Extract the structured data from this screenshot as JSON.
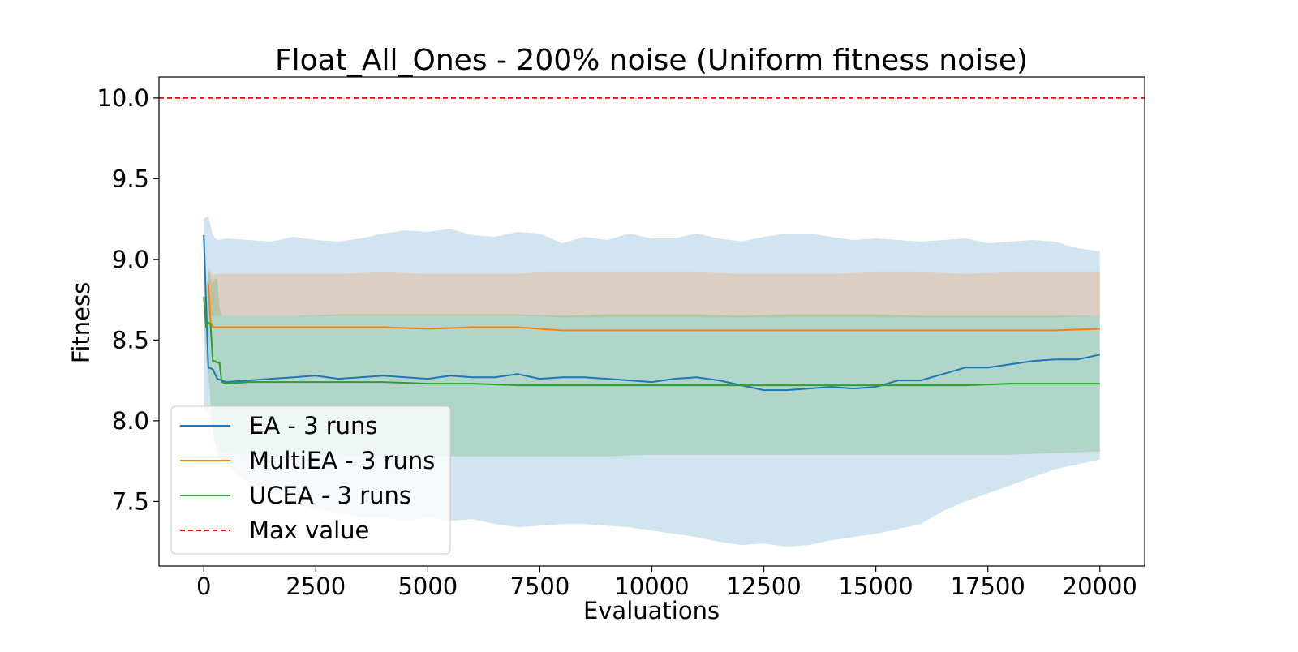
{
  "chart_data": {
    "type": "line",
    "title": "Float_All_Ones - 200% noise (Uniform fitness noise)",
    "xlabel": "Evaluations",
    "ylabel": "Fitness",
    "xlim": [
      -1000,
      21000
    ],
    "ylim": [
      7.1,
      10.13
    ],
    "xticks": [
      0,
      2500,
      5000,
      7500,
      10000,
      12500,
      15000,
      17500,
      20000
    ],
    "xtick_labels": [
      "0",
      "2500",
      "5000",
      "7500",
      "10000",
      "12500",
      "15000",
      "17500",
      "20000"
    ],
    "yticks": [
      7.5,
      8.0,
      8.5,
      9.0,
      9.5,
      10.0
    ],
    "ytick_labels": [
      "7.5",
      "8.0",
      "8.5",
      "9.0",
      "9.5",
      "10.0"
    ],
    "grid": false,
    "legend_position": "bottom-left",
    "series": [
      {
        "name": "EA - 3 runs",
        "color": "#1f77b4",
        "x": [
          0,
          100,
          200,
          300,
          500,
          1000,
          1500,
          2000,
          2500,
          3000,
          3500,
          4000,
          4500,
          5000,
          5500,
          6000,
          6500,
          7000,
          7500,
          8000,
          8500,
          9000,
          9500,
          10000,
          10500,
          11000,
          11500,
          12000,
          12500,
          13000,
          13500,
          14000,
          14500,
          15000,
          15500,
          16000,
          16500,
          17000,
          17500,
          18000,
          18500,
          19000,
          19500,
          20000
        ],
        "y": [
          9.15,
          8.33,
          8.32,
          8.26,
          8.24,
          8.25,
          8.26,
          8.27,
          8.28,
          8.26,
          8.27,
          8.28,
          8.27,
          8.26,
          8.28,
          8.27,
          8.27,
          8.29,
          8.26,
          8.27,
          8.27,
          8.26,
          8.25,
          8.24,
          8.26,
          8.27,
          8.25,
          8.22,
          8.19,
          8.19,
          8.2,
          8.21,
          8.2,
          8.21,
          8.25,
          8.25,
          8.29,
          8.33,
          8.33,
          8.35,
          8.37,
          8.38,
          8.38,
          8.41
        ],
        "band_upper": [
          9.25,
          9.27,
          9.15,
          9.12,
          9.13,
          9.12,
          9.11,
          9.14,
          9.12,
          9.11,
          9.13,
          9.16,
          9.18,
          9.17,
          9.19,
          9.15,
          9.14,
          9.17,
          9.16,
          9.1,
          9.14,
          9.12,
          9.16,
          9.13,
          9.13,
          9.16,
          9.13,
          9.11,
          9.14,
          9.16,
          9.16,
          9.14,
          9.12,
          9.13,
          9.12,
          9.11,
          9.12,
          9.13,
          9.1,
          9.11,
          9.12,
          9.11,
          9.07,
          9.05
        ],
        "band_lower": [
          8.05,
          8.05,
          7.95,
          7.78,
          7.72,
          7.62,
          7.55,
          7.5,
          7.45,
          7.43,
          7.4,
          7.4,
          7.38,
          7.4,
          7.38,
          7.39,
          7.36,
          7.34,
          7.35,
          7.36,
          7.36,
          7.35,
          7.34,
          7.32,
          7.3,
          7.28,
          7.25,
          7.23,
          7.24,
          7.22,
          7.23,
          7.26,
          7.28,
          7.3,
          7.33,
          7.36,
          7.44,
          7.5,
          7.55,
          7.6,
          7.65,
          7.7,
          7.73,
          7.76
        ]
      },
      {
        "name": "MultiEA - 3 runs",
        "color": "#ff7f0e",
        "x": [
          100,
          150,
          200,
          300,
          500,
          1000,
          2000,
          3000,
          4000,
          5000,
          6000,
          7000,
          7500,
          8000,
          9000,
          10000,
          11000,
          12000,
          13000,
          14000,
          15000,
          16000,
          17000,
          18000,
          19000,
          20000
        ],
        "y": [
          8.85,
          8.62,
          8.58,
          8.58,
          8.58,
          8.58,
          8.58,
          8.58,
          8.58,
          8.57,
          8.58,
          8.58,
          8.57,
          8.56,
          8.56,
          8.56,
          8.56,
          8.56,
          8.56,
          8.56,
          8.56,
          8.56,
          8.56,
          8.56,
          8.56,
          8.57
        ],
        "band_upper": [
          8.95,
          8.93,
          8.9,
          8.91,
          8.91,
          8.91,
          8.91,
          8.91,
          8.92,
          8.91,
          8.91,
          8.91,
          8.92,
          8.92,
          8.92,
          8.92,
          8.92,
          8.91,
          8.91,
          8.91,
          8.92,
          8.92,
          8.91,
          8.92,
          8.92,
          8.92
        ],
        "band_lower": [
          8.7,
          8.65,
          8.65,
          8.65,
          8.65,
          8.65,
          8.65,
          8.65,
          8.65,
          8.65,
          8.65,
          8.65,
          8.65,
          8.64,
          8.64,
          8.64,
          8.64,
          8.64,
          8.64,
          8.64,
          8.64,
          8.64,
          8.64,
          8.64,
          8.64,
          8.65
        ]
      },
      {
        "name": "UCEA - 3 runs",
        "color": "#2ca02c",
        "x": [
          0,
          50,
          100,
          150,
          200,
          250,
          300,
          350,
          400,
          500,
          1000,
          2000,
          3000,
          4000,
          5000,
          6000,
          7000,
          8000,
          9000,
          10000,
          11000,
          12000,
          13000,
          14000,
          15000,
          16000,
          17000,
          18000,
          19000,
          20000
        ],
        "y": [
          8.77,
          8.58,
          8.61,
          8.6,
          8.37,
          8.37,
          8.36,
          8.36,
          8.24,
          8.23,
          8.24,
          8.24,
          8.24,
          8.24,
          8.23,
          8.23,
          8.22,
          8.22,
          8.22,
          8.22,
          8.22,
          8.22,
          8.22,
          8.22,
          8.22,
          8.22,
          8.22,
          8.23,
          8.23,
          8.23
        ],
        "band_upper": [
          8.8,
          8.8,
          8.95,
          8.88,
          8.85,
          8.88,
          8.88,
          8.7,
          8.65,
          8.65,
          8.65,
          8.65,
          8.66,
          8.66,
          8.66,
          8.66,
          8.66,
          8.65,
          8.66,
          8.66,
          8.66,
          8.65,
          8.66,
          8.66,
          8.66,
          8.65,
          8.65,
          8.65,
          8.65,
          8.65
        ],
        "band_lower": [
          8.7,
          8.4,
          8.3,
          8.1,
          7.9,
          7.85,
          7.83,
          7.82,
          7.8,
          7.8,
          7.79,
          7.79,
          7.79,
          7.78,
          7.78,
          7.78,
          7.78,
          7.78,
          7.78,
          7.79,
          7.79,
          7.79,
          7.79,
          7.79,
          7.79,
          7.79,
          7.79,
          7.79,
          7.8,
          7.81
        ]
      },
      {
        "name": "Max value",
        "color": "#ff0000",
        "style": "dashed",
        "y_constant": 10.0
      }
    ]
  }
}
